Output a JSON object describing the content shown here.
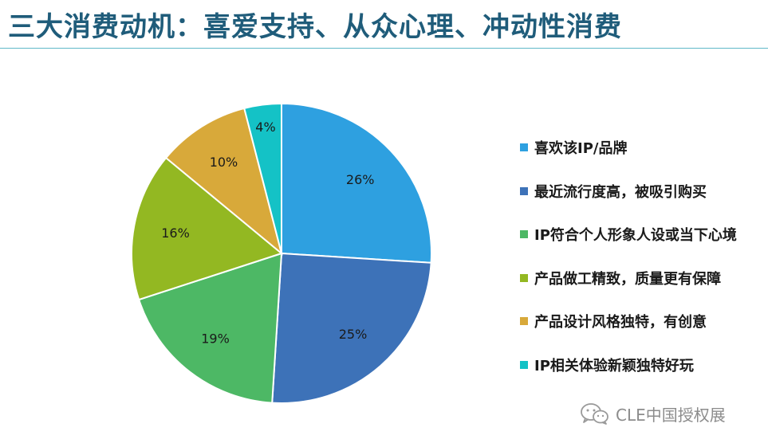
{
  "slide": {
    "title": "三大消费动机：喜爱支持、从众心理、冲动性消费"
  },
  "chart_data": {
    "type": "pie",
    "start_angle_deg": 0,
    "direction": "clockwise",
    "slices": [
      {
        "label": "喜欢该IP/品牌",
        "value": 26,
        "display": "26%",
        "color": "#2ea0e0"
      },
      {
        "label": "最近流行度高，被吸引购买",
        "value": 25,
        "display": "25%",
        "color": "#3d72b8"
      },
      {
        "label": "IP符合个人形象人设或当下心境",
        "value": 19,
        "display": "19%",
        "color": "#4db865"
      },
      {
        "label": "产品做工精致，质量更有保障",
        "value": 16,
        "display": "16%",
        "color": "#93b822"
      },
      {
        "label": "产品设计风格独特，有创意",
        "value": 10,
        "display": "10%",
        "color": "#d8a93a"
      },
      {
        "label": "IP相关体验新颖独特好玩",
        "value": 4,
        "display": "4%",
        "color": "#14c2c6"
      }
    ],
    "legend_position": "right"
  },
  "watermark": {
    "text": "CLE中国授权展",
    "icon": "wechat-icon"
  }
}
